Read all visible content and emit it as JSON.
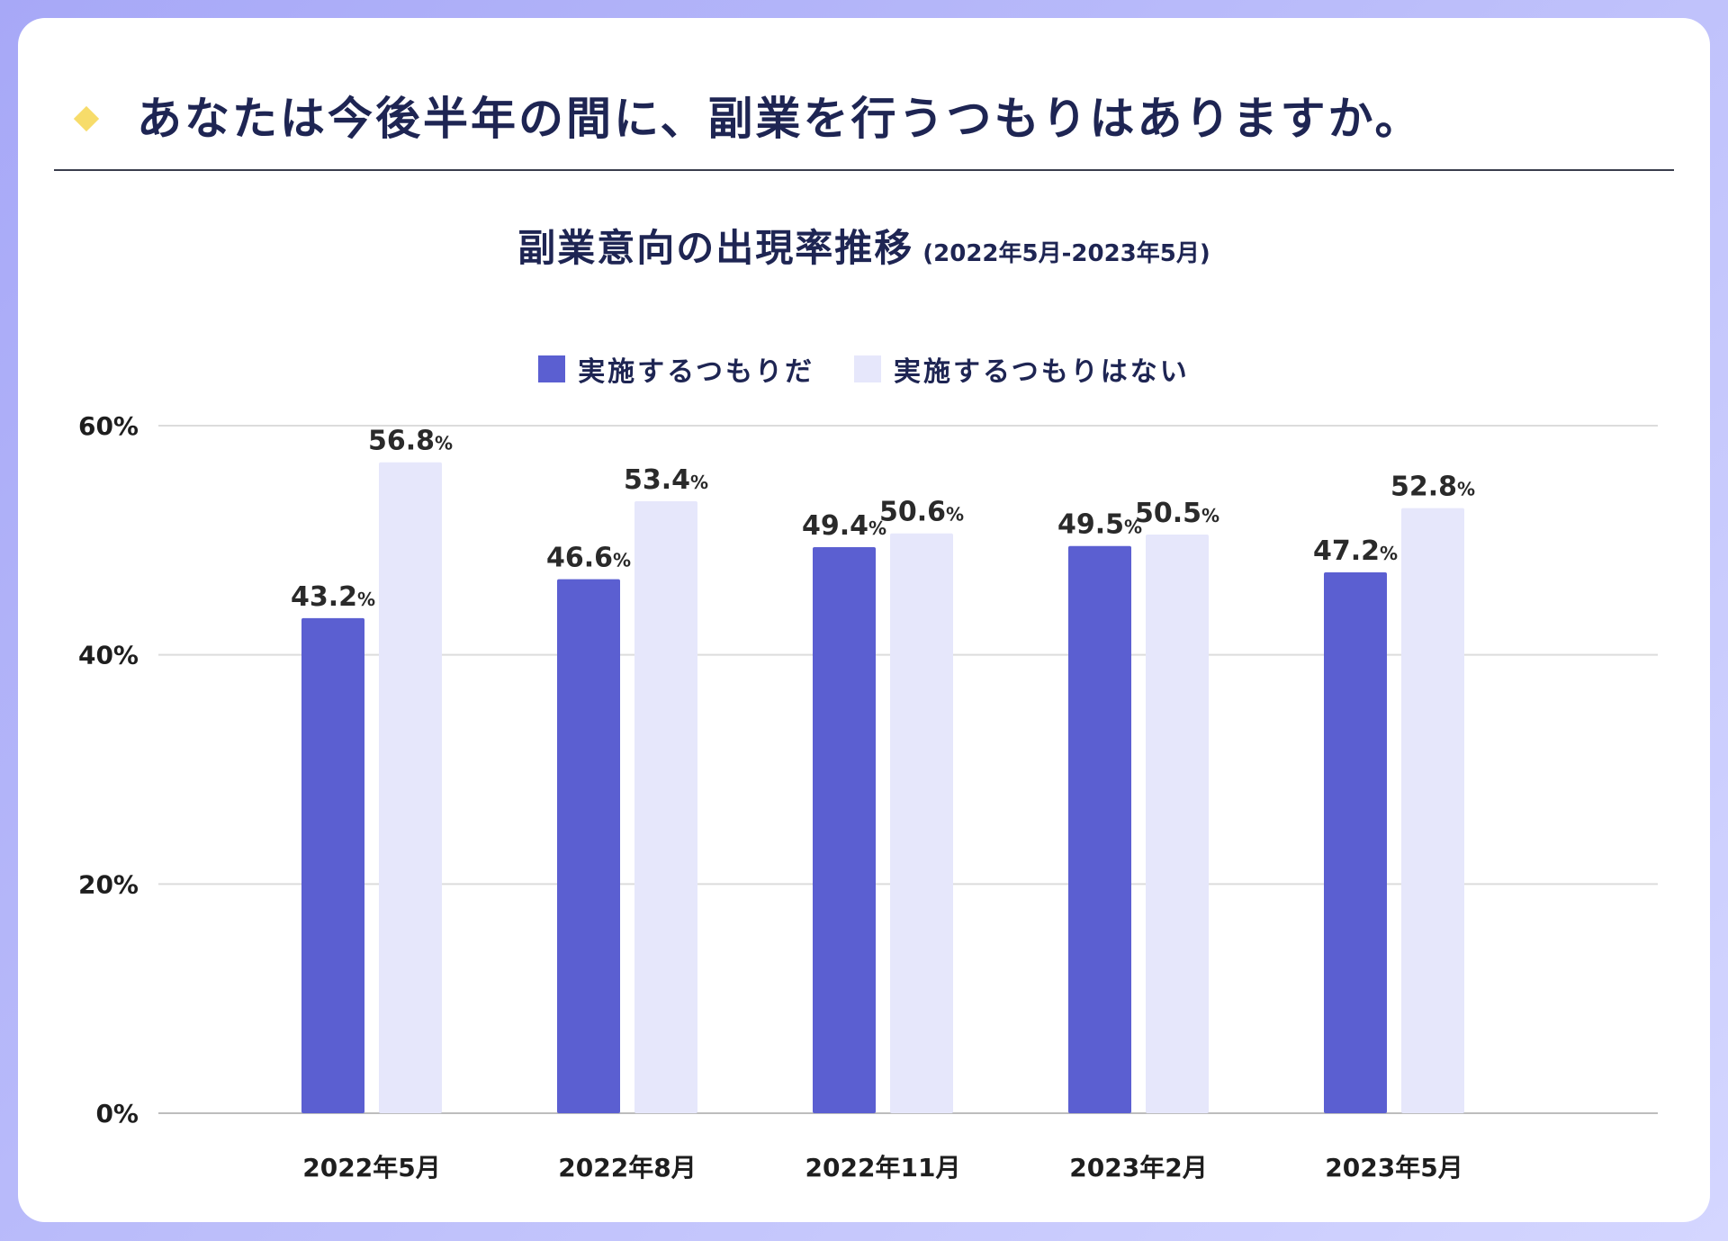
{
  "header": {
    "title": "あなたは今後半年の間に、副業を行うつもりはありますか。"
  },
  "chart_data": {
    "type": "bar",
    "title": "副業意向の出現率推移",
    "subtitle": "(2022年5月-2023年5月)",
    "categories": [
      "2022年5月",
      "2022年8月",
      "2022年11月",
      "2023年2月",
      "2023年5月"
    ],
    "series": [
      {
        "name": "実施するつもりだ",
        "color": "#5b5fd1",
        "values": [
          43.2,
          46.6,
          49.4,
          49.5,
          47.2
        ]
      },
      {
        "name": "実施するつもりはない",
        "color": "#e6e7fb",
        "values": [
          56.8,
          53.4,
          50.6,
          50.5,
          52.8
        ]
      }
    ],
    "value_suffix": "%",
    "ylim": [
      0,
      60
    ],
    "yticks": [
      {
        "value": 0,
        "label": "0%"
      },
      {
        "value": 20,
        "label": "20%"
      },
      {
        "value": 40,
        "label": "40%"
      },
      {
        "value": 60,
        "label": "60%"
      }
    ],
    "grid": true,
    "legend_position": "top"
  }
}
